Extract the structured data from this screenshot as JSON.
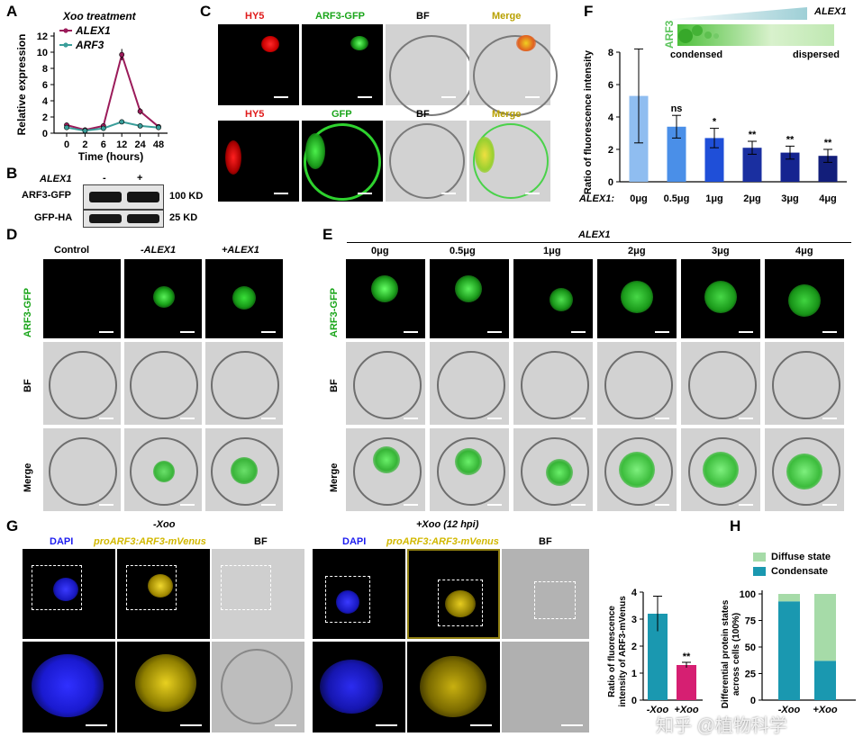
{
  "panels": {
    "A": "A",
    "B": "B",
    "C": "C",
    "D": "D",
    "E": "E",
    "F": "F",
    "G": "G",
    "H": "H"
  },
  "panelA": {
    "title": "Xoo treatment",
    "legend": [
      "ALEX1",
      "ARF3"
    ],
    "ylabel": "Relative expression",
    "xlabel": "Time (hours)",
    "yticks": [
      "0",
      "2",
      "4",
      "6",
      "8",
      "10",
      "12"
    ],
    "xticks": [
      "0",
      "2",
      "6",
      "12",
      "24",
      "48"
    ],
    "colors": {
      "ALEX1": "#9b1b5a",
      "ARF3": "#3a9e9a"
    }
  },
  "panelB": {
    "alex_label": "ALEX1",
    "minus": "-",
    "plus": "+",
    "rows": [
      {
        "name": "ARF3-GFP",
        "size": "100 KD"
      },
      {
        "name": "GFP-HA",
        "size": "25 KD"
      }
    ]
  },
  "panelC": {
    "headers": [
      {
        "text": "HY5",
        "color": "#e01b1b"
      },
      {
        "text": "ARF3-GFP",
        "color": "#1aa51a"
      },
      {
        "text": "BF",
        "color": "#000000"
      },
      {
        "text": "Merge",
        "color": "#b8a000"
      }
    ],
    "headers2": [
      {
        "text": "HY5",
        "color": "#e01b1b"
      },
      {
        "text": "GFP",
        "color": "#1aa51a"
      },
      {
        "text": "BF",
        "color": "#000000"
      },
      {
        "text": "Merge",
        "color": "#b8a000"
      }
    ]
  },
  "panelD": {
    "cols": [
      "Control",
      "-ALEX1",
      "+ALEX1"
    ],
    "rows": [
      "ARF3-GFP",
      "BF",
      "Merge"
    ]
  },
  "panelE": {
    "group": "ALEX1",
    "cols": [
      "0μg",
      "0.5μg",
      "1μg",
      "2μg",
      "3μg",
      "4μg"
    ],
    "rows": [
      "ARF3-GFP",
      "BF",
      "Merge"
    ]
  },
  "panelF": {
    "gradient_label": "ALEX1",
    "arf3_label": "ARF3",
    "condensed": "condensed",
    "dispersed": "dispersed",
    "ylabel": "Ratio of fluorescence intensity",
    "xlabel_prefix": "ALEX1:",
    "yticks": [
      "0",
      "2",
      "4",
      "6",
      "8"
    ]
  },
  "panelG": {
    "minus_title": "-Xoo",
    "plus_title": "+Xoo (12 hpi)",
    "channels": [
      {
        "text": "DAPI",
        "color": "#1c1cf0"
      },
      {
        "text": "proARF3:ARF3-mVenus",
        "color": "#d2b800"
      },
      {
        "text": "BF",
        "color": "#000000"
      }
    ],
    "bar_ylabel": "Ratio of fluorescence intensity of ARF3-mVenus",
    "bar_yticks": [
      "0",
      "1",
      "2",
      "3",
      "4"
    ],
    "bar_x": [
      "-Xoo",
      "+Xoo"
    ],
    "sig": "**"
  },
  "panelH": {
    "legend": [
      {
        "text": "Diffuse state",
        "color": "#a6dba8"
      },
      {
        "text": "Condensate",
        "color": "#1a98b0"
      }
    ],
    "ylabel": "Differential protein states across cells (100%)",
    "yticks": [
      "0",
      "25",
      "50",
      "75",
      "100"
    ],
    "x": [
      "-Xoo",
      "+Xoo"
    ]
  },
  "watermark": "知乎 @植物科学",
  "chart_data": [
    {
      "type": "line",
      "title": "Xoo treatment",
      "xlabel": "Time (hours)",
      "ylabel": "Relative expression",
      "categories": [
        "0",
        "2",
        "6",
        "12",
        "24",
        "48"
      ],
      "ylim": [
        0,
        12
      ],
      "series": [
        {
          "name": "ALEX1",
          "values": [
            1.0,
            0.4,
            0.9,
            9.7,
            2.7,
            0.8
          ],
          "err": [
            0.3,
            0.2,
            0.2,
            0.7,
            0.4,
            0.2
          ]
        },
        {
          "name": "ARF3",
          "values": [
            0.7,
            0.3,
            0.6,
            1.4,
            0.9,
            0.7
          ],
          "err": [
            0.2,
            0.1,
            0.1,
            0.2,
            0.2,
            0.1
          ]
        }
      ]
    },
    {
      "type": "bar",
      "xlabel": "ALEX1:",
      "ylabel": "Ratio of fluorescence intensity",
      "categories": [
        "0μg",
        "0.5μg",
        "1μg",
        "2μg",
        "3μg",
        "4μg"
      ],
      "values": [
        5.3,
        3.4,
        2.7,
        2.1,
        1.8,
        1.6
      ],
      "err": [
        2.9,
        0.7,
        0.6,
        0.4,
        0.4,
        0.4
      ],
      "significance": [
        "",
        "ns",
        "*",
        "**",
        "**",
        "**"
      ],
      "colors": [
        "#8fbdf0",
        "#4a8fe8",
        "#1f4fd8",
        "#1a2fa0",
        "#152490",
        "#121e7a"
      ],
      "ylim": [
        0,
        8
      ]
    },
    {
      "type": "bar",
      "ylabel": "Ratio of fluorescence intensity of ARF3-mVenus",
      "categories": [
        "-Xoo",
        "+Xoo"
      ],
      "values": [
        3.2,
        1.3
      ],
      "err": [
        0.65,
        0.1
      ],
      "significance": [
        "",
        "**"
      ],
      "colors": [
        "#1a98b0",
        "#d61f72"
      ],
      "ylim": [
        0,
        4
      ]
    },
    {
      "type": "bar",
      "ylabel": "Differential protein states across cells (100%)",
      "categories": [
        "-Xoo",
        "+Xoo"
      ],
      "series": [
        {
          "name": "Condensate",
          "values": [
            93,
            37
          ]
        },
        {
          "name": "Diffuse state",
          "values": [
            7,
            63
          ]
        }
      ],
      "ylim": [
        0,
        100
      ]
    }
  ]
}
